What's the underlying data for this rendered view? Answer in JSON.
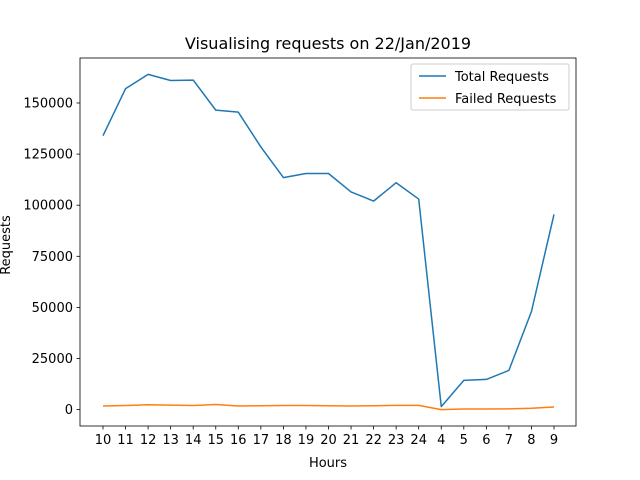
{
  "chart_data": {
    "type": "line",
    "title": "Visualising requests on 22/Jan/2019",
    "xlabel": "Hours",
    "ylabel": "Requests",
    "categories": [
      "10",
      "11",
      "12",
      "13",
      "14",
      "15",
      "16",
      "17",
      "18",
      "19",
      "20",
      "21",
      "22",
      "23",
      "24",
      "4",
      "5",
      "6",
      "7",
      "8",
      "9"
    ],
    "yticks": [
      0,
      25000,
      50000,
      75000,
      100000,
      125000,
      150000
    ],
    "ylim": [
      -8000,
      172000
    ],
    "grid": false,
    "legend_position": "top-right",
    "series": [
      {
        "name": "Total Requests",
        "color": "#1f77b4",
        "values": [
          134000,
          157000,
          164000,
          161000,
          161200,
          146500,
          145500,
          128500,
          113500,
          115500,
          115500,
          106500,
          102000,
          111000,
          103000,
          1500,
          14300,
          14800,
          19200,
          48000,
          95500
        ]
      },
      {
        "name": "Failed Requests",
        "color": "#ff7f0e",
        "values": [
          1800,
          2000,
          2400,
          2200,
          2000,
          2500,
          1800,
          1900,
          2000,
          2000,
          1900,
          1800,
          1900,
          2100,
          2100,
          0,
          300,
          300,
          400,
          700,
          1300
        ]
      }
    ]
  }
}
